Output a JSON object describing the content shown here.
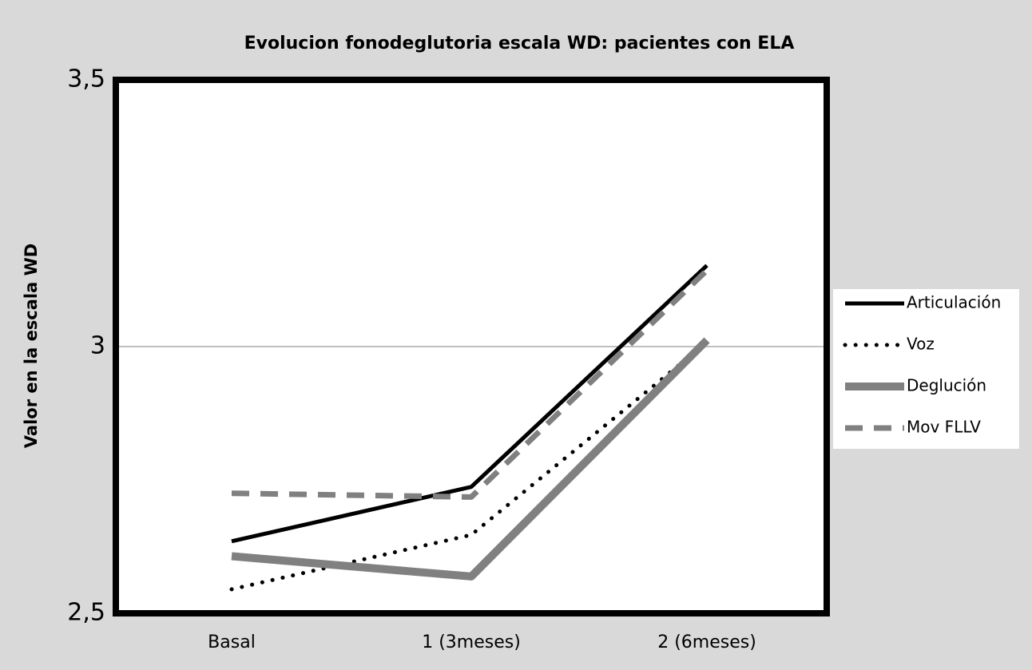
{
  "chart_data": {
    "type": "line",
    "title": "Evolucion fonodeglutoria escala WD: pacientes con ELA",
    "y_label": "Valor en la escala WD",
    "categories": [
      "Basal",
      "1 (3meses)",
      "2 (6meses)"
    ],
    "series": [
      {
        "name": "Articulación",
        "color": "#000000",
        "width": 5,
        "dash": "solid",
        "values": [
          2.635,
          2.737,
          3.152
        ]
      },
      {
        "name": "Voz",
        "color": "#000000",
        "width": 5,
        "dash": "dotted",
        "values": [
          2.545,
          2.647,
          3.008
        ]
      },
      {
        "name": "Deglución",
        "color": "#808080",
        "width": 10,
        "dash": "solid",
        "values": [
          2.607,
          2.569,
          3.012
        ]
      },
      {
        "name": "Mov FLLV",
        "color": "#808080",
        "width": 7,
        "dash": "dashed",
        "values": [
          2.725,
          2.718,
          3.143
        ]
      }
    ],
    "ylim": [
      2.5,
      3.5
    ],
    "yticks": [
      {
        "value": 2.5,
        "label": "2,5"
      },
      3,
      {
        "value": 3.5,
        "label": "3,5"
      }
    ],
    "grid": true,
    "legend": "right"
  }
}
